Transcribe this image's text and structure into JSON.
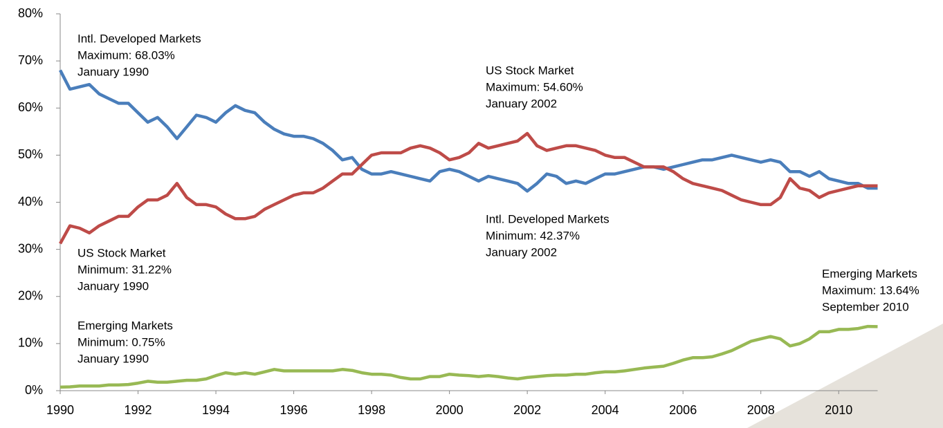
{
  "chart_data": {
    "type": "line",
    "x": [
      1990,
      1990.25,
      1990.5,
      1990.75,
      1991,
      1991.25,
      1991.5,
      1991.75,
      1992,
      1992.25,
      1992.5,
      1992.75,
      1993,
      1993.25,
      1993.5,
      1993.75,
      1994,
      1994.25,
      1994.5,
      1994.75,
      1995,
      1995.25,
      1995.5,
      1995.75,
      1996,
      1996.25,
      1996.5,
      1996.75,
      1997,
      1997.25,
      1997.5,
      1997.75,
      1998,
      1998.25,
      1998.5,
      1998.75,
      1999,
      1999.25,
      1999.5,
      1999.75,
      2000,
      2000.25,
      2000.5,
      2000.75,
      2001,
      2001.25,
      2001.5,
      2001.75,
      2002,
      2002.25,
      2002.5,
      2002.75,
      2003,
      2003.25,
      2003.5,
      2003.75,
      2004,
      2004.25,
      2004.5,
      2004.75,
      2005,
      2005.25,
      2005.5,
      2005.75,
      2006,
      2006.25,
      2006.5,
      2006.75,
      2007,
      2007.25,
      2007.5,
      2007.75,
      2008,
      2008.25,
      2008.5,
      2008.75,
      2009,
      2009.25,
      2009.5,
      2009.75,
      2010,
      2010.25,
      2010.5,
      2010.75,
      2011
    ],
    "series": [
      {
        "color": "#4a7ebb",
        "values": [
          68.03,
          64,
          64.5,
          65,
          63,
          62,
          61,
          61,
          59,
          57,
          58,
          56,
          53.5,
          56,
          58.5,
          58,
          57,
          59,
          60.5,
          59.5,
          59,
          57,
          55.5,
          54.5,
          54,
          54,
          53.5,
          52.5,
          51,
          49,
          49.5,
          47,
          46,
          46,
          46.5,
          46,
          45.5,
          45,
          44.5,
          46.5,
          47,
          46.5,
          45.5,
          44.5,
          45.5,
          45,
          44.5,
          44,
          42.37,
          44,
          46,
          45.5,
          44,
          44.5,
          44,
          45,
          46,
          46,
          46.5,
          47,
          47.5,
          47.5,
          47,
          47.5,
          48,
          48.5,
          49,
          49,
          49.5,
          50,
          49.5,
          49,
          48.5,
          49,
          48.5,
          46.5,
          46.5,
          45.5,
          46.5,
          45,
          44.5,
          44,
          44,
          43,
          43
        ]
      },
      {
        "color": "#be4b48",
        "values": [
          31.22,
          35,
          34.5,
          33.5,
          35,
          36,
          37,
          37,
          39,
          40.5,
          40.5,
          41.5,
          44,
          41,
          39.5,
          39.5,
          39,
          37.5,
          36.5,
          36.5,
          37,
          38.5,
          39.5,
          40.5,
          41.5,
          42,
          42,
          43,
          44.5,
          46,
          46,
          48,
          50,
          50.5,
          50.5,
          50.5,
          51.5,
          52,
          51.5,
          50.5,
          49,
          49.5,
          50.5,
          52.5,
          51.5,
          52,
          52.5,
          53,
          54.6,
          52,
          51,
          51.5,
          52,
          52,
          51.5,
          51,
          50,
          49.5,
          49.5,
          48.5,
          47.5,
          47.5,
          47.5,
          46.5,
          45,
          44,
          43.5,
          43,
          42.5,
          41.5,
          40.5,
          40,
          39.5,
          39.5,
          41,
          45,
          43,
          42.5,
          41,
          42,
          42.5,
          43,
          43.5,
          43.5,
          43.5
        ]
      },
      {
        "color": "#98b954",
        "values": [
          0.75,
          0.8,
          1,
          1,
          1,
          1.2,
          1.2,
          1.3,
          1.6,
          2,
          1.8,
          1.8,
          2,
          2.2,
          2.2,
          2.5,
          3.2,
          3.8,
          3.5,
          3.8,
          3.5,
          4,
          4.5,
          4.2,
          4.2,
          4.2,
          4.2,
          4.2,
          4.2,
          4.5,
          4.3,
          3.8,
          3.5,
          3.5,
          3.3,
          2.8,
          2.5,
          2.5,
          3,
          3,
          3.5,
          3.3,
          3.2,
          3,
          3.2,
          3,
          2.7,
          2.5,
          2.8,
          3,
          3.2,
          3.3,
          3.3,
          3.5,
          3.5,
          3.8,
          4,
          4,
          4.2,
          4.5,
          4.8,
          5,
          5.2,
          5.8,
          6.5,
          7,
          7,
          7.2,
          7.8,
          8.5,
          9.5,
          10.5,
          11,
          11.5,
          11,
          9.5,
          10,
          11,
          12.5,
          12.5,
          13,
          13,
          13.2,
          13.64,
          13.6
        ]
      }
    ],
    "xlim": [
      1990,
      2011
    ],
    "xticks": [
      1990,
      1992,
      1994,
      1996,
      1998,
      2000,
      2002,
      2004,
      2006,
      2008,
      2010
    ],
    "ylim": [
      0,
      80
    ],
    "yticks": [
      {
        "value": 0,
        "label": "0%"
      },
      {
        "value": 10,
        "label": "10%"
      },
      {
        "value": 20,
        "label": "20%"
      },
      {
        "value": 30,
        "label": "30%"
      },
      {
        "value": 40,
        "label": "40%"
      },
      {
        "value": 50,
        "label": "50%"
      },
      {
        "value": 60,
        "label": "60%"
      },
      {
        "value": 70,
        "label": "70%"
      },
      {
        "value": 80,
        "label": "80%"
      }
    ],
    "annotations": [
      [
        "Intl. Developed Markets",
        "Maximum: 68.03%",
        "January 1990"
      ],
      [
        "US Stock Market",
        "Maximum: 54.60%",
        "January 2002"
      ],
      [
        "Intl. Developed Markets",
        "Minimum: 42.37%",
        "January 2002"
      ],
      [
        "US Stock Market",
        "Minimum: 31.22%",
        "January 1990"
      ],
      [
        "Emerging Markets",
        "Maximum: 13.64%",
        "September 2010"
      ],
      [
        "Emerging Markets",
        "Minimum: 0.75%",
        "January 1990"
      ]
    ]
  }
}
